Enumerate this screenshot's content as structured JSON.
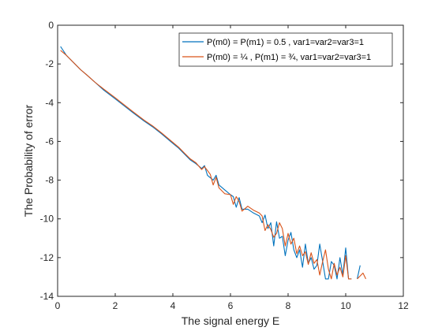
{
  "chart_data": {
    "type": "line",
    "title": "",
    "xlabel": "The signal energy E",
    "ylabel": "The Probability of error",
    "xlim": [
      0,
      12
    ],
    "ylim": [
      -14,
      0
    ],
    "xticks": [
      0,
      2,
      4,
      6,
      8,
      10,
      12
    ],
    "yticks": [
      0,
      -2,
      -4,
      -6,
      -8,
      -10,
      -12,
      -14
    ],
    "grid": false,
    "legend_position": "top-right",
    "series": [
      {
        "name": "P(m0) = P(m1) = 0.5 , var1=var2=var3=1",
        "color": "#0072BD",
        "points": [
          [
            0.1,
            -1.1
          ],
          [
            0.3,
            -1.55
          ],
          [
            0.5,
            -1.85
          ],
          [
            0.8,
            -2.3
          ],
          [
            1.0,
            -2.55
          ],
          [
            1.3,
            -2.95
          ],
          [
            1.6,
            -3.35
          ],
          [
            2.0,
            -3.8
          ],
          [
            2.3,
            -4.15
          ],
          [
            2.6,
            -4.5
          ],
          [
            3.0,
            -4.95
          ],
          [
            3.3,
            -5.25
          ],
          [
            3.6,
            -5.6
          ],
          [
            4.0,
            -6.1
          ],
          [
            4.2,
            -6.35
          ],
          [
            4.4,
            -6.65
          ],
          [
            4.6,
            -6.95
          ],
          [
            4.8,
            -7.15
          ],
          [
            5.0,
            -7.4
          ],
          [
            5.1,
            -7.25
          ],
          [
            5.2,
            -7.75
          ],
          [
            5.4,
            -8.0
          ],
          [
            5.5,
            -7.75
          ],
          [
            5.6,
            -8.25
          ],
          [
            5.8,
            -8.5
          ],
          [
            6.0,
            -8.75
          ],
          [
            6.1,
            -8.85
          ],
          [
            6.2,
            -9.4
          ],
          [
            6.3,
            -8.9
          ],
          [
            6.4,
            -9.5
          ],
          [
            6.6,
            -9.5
          ],
          [
            6.8,
            -9.7
          ],
          [
            7.0,
            -9.85
          ],
          [
            7.1,
            -10.2
          ],
          [
            7.2,
            -9.8
          ],
          [
            7.3,
            -10.5
          ],
          [
            7.4,
            -10.2
          ],
          [
            7.5,
            -11.4
          ],
          [
            7.6,
            -10.15
          ],
          [
            7.7,
            -11.0
          ],
          [
            7.8,
            -10.9
          ],
          [
            7.9,
            -11.9
          ],
          [
            8.0,
            -11.1
          ],
          [
            8.1,
            -10.7
          ],
          [
            8.2,
            -11.6
          ],
          [
            8.3,
            -12.0
          ],
          [
            8.4,
            -11.6
          ],
          [
            8.5,
            -12.5
          ],
          [
            8.6,
            -11.3
          ],
          [
            8.7,
            -12.3
          ],
          [
            8.8,
            -12.0
          ],
          [
            8.9,
            -12.6
          ],
          [
            9.0,
            -12.4
          ],
          [
            9.1,
            -11.3
          ],
          [
            9.2,
            -12.2
          ],
          [
            9.3,
            -13.1
          ],
          [
            9.4,
            -13.1
          ],
          [
            9.5,
            -12.2
          ],
          [
            9.6,
            -12.4
          ],
          [
            9.7,
            -13.1
          ],
          [
            9.8,
            -12.0
          ],
          [
            9.9,
            -12.9
          ],
          [
            10.0,
            -11.5
          ],
          [
            10.1,
            -13.1
          ],
          [
            10.2,
            -13.1
          ],
          null,
          [
            10.4,
            -13.1
          ],
          [
            10.5,
            -12.4
          ]
        ]
      },
      {
        "name": "P(m0) = ¼ , P(m1) = ¾, var1=var2=var3=1",
        "color": "#D95319",
        "points": [
          [
            0.1,
            -1.3
          ],
          [
            0.3,
            -1.55
          ],
          [
            0.5,
            -1.85
          ],
          [
            0.8,
            -2.3
          ],
          [
            1.0,
            -2.55
          ],
          [
            1.3,
            -2.95
          ],
          [
            1.6,
            -3.3
          ],
          [
            2.0,
            -3.75
          ],
          [
            2.3,
            -4.1
          ],
          [
            2.6,
            -4.45
          ],
          [
            3.0,
            -4.9
          ],
          [
            3.3,
            -5.2
          ],
          [
            3.6,
            -5.55
          ],
          [
            4.0,
            -6.05
          ],
          [
            4.2,
            -6.3
          ],
          [
            4.4,
            -6.6
          ],
          [
            4.6,
            -6.9
          ],
          [
            4.8,
            -7.1
          ],
          [
            5.0,
            -7.45
          ],
          [
            5.1,
            -7.3
          ],
          [
            5.2,
            -7.5
          ],
          [
            5.3,
            -7.7
          ],
          [
            5.4,
            -8.25
          ],
          [
            5.5,
            -7.85
          ],
          [
            5.6,
            -8.4
          ],
          [
            5.8,
            -8.7
          ],
          [
            6.0,
            -8.75
          ],
          [
            6.1,
            -9.25
          ],
          [
            6.2,
            -8.85
          ],
          [
            6.3,
            -9.1
          ],
          [
            6.4,
            -9.6
          ],
          [
            6.6,
            -9.35
          ],
          [
            6.8,
            -9.55
          ],
          [
            7.0,
            -9.7
          ],
          [
            7.1,
            -9.85
          ],
          [
            7.2,
            -10.6
          ],
          [
            7.3,
            -10.3
          ],
          [
            7.4,
            -10.55
          ],
          [
            7.5,
            -10.95
          ],
          [
            7.6,
            -10.75
          ],
          [
            7.7,
            -10.2
          ],
          [
            7.8,
            -10.5
          ],
          [
            7.9,
            -11.4
          ],
          [
            8.0,
            -10.75
          ],
          [
            8.1,
            -11.3
          ],
          [
            8.2,
            -11.0
          ],
          [
            8.3,
            -11.8
          ],
          [
            8.4,
            -11.4
          ],
          [
            8.5,
            -11.9
          ],
          [
            8.6,
            -11.7
          ],
          [
            8.7,
            -12.35
          ],
          [
            8.8,
            -11.75
          ],
          [
            8.9,
            -12.3
          ],
          [
            9.0,
            -12.1
          ],
          [
            9.1,
            -12.9
          ],
          [
            9.2,
            -12.2
          ],
          [
            9.3,
            -11.6
          ],
          [
            9.4,
            -12.6
          ],
          [
            9.5,
            -13.1
          ],
          [
            9.6,
            -12.3
          ],
          [
            9.7,
            -12.9
          ],
          [
            9.8,
            -12.5
          ],
          [
            9.9,
            -13.0
          ],
          [
            10.0,
            -11.9
          ],
          [
            10.1,
            -13.1
          ],
          [
            10.2,
            -13.1
          ],
          null,
          [
            10.4,
            -13.1
          ],
          [
            10.6,
            -12.8
          ],
          [
            10.7,
            -13.1
          ]
        ]
      }
    ]
  }
}
